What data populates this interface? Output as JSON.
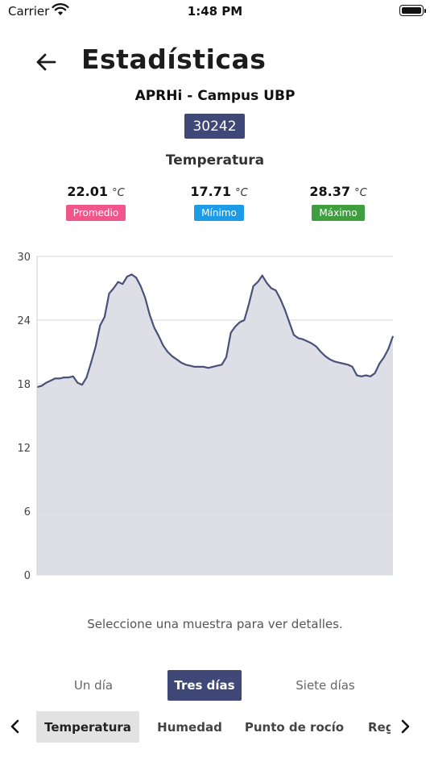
{
  "status_bar": {
    "carrier": "Carrier",
    "time": "1:48 PM"
  },
  "header": {
    "title": "Estadísticas"
  },
  "station": {
    "name": "APRHi - Campus UBP",
    "id": "30242"
  },
  "variable": {
    "title": "Temperatura"
  },
  "stats": [
    {
      "value": "22.01",
      "unit": "°C",
      "label": "Promedio",
      "color": "#f0568a"
    },
    {
      "value": "17.71",
      "unit": "°C",
      "label": "Mínimo",
      "color": "#1e9be6"
    },
    {
      "value": "28.37",
      "unit": "°C",
      "label": "Máximo",
      "color": "#3e9e40"
    }
  ],
  "chart_data": {
    "type": "area",
    "title": "",
    "xlabel": "",
    "ylabel": "",
    "ylim": [
      0,
      30
    ],
    "yticks": [
      "0",
      "6",
      "12",
      "18",
      "24",
      "30"
    ],
    "grid": true,
    "line_color": "#4a5178",
    "fill_color": "#dcdce6",
    "series": [
      {
        "values": [
          17.7,
          17.8,
          18.1,
          18.3,
          18.5,
          18.5,
          18.6,
          18.6,
          18.7,
          18.1,
          17.9,
          18.6,
          20.0,
          21.5,
          23.5,
          24.3,
          26.5,
          27.0,
          27.6,
          27.4,
          28.1,
          28.3,
          28.0,
          27.2,
          26.1,
          24.5,
          23.3,
          22.5,
          21.6,
          21.0,
          20.6,
          20.3,
          20.0,
          19.8,
          19.7,
          19.6,
          19.6,
          19.6,
          19.5,
          19.6,
          19.7,
          19.8,
          20.5,
          22.8,
          23.4,
          23.8,
          24.0,
          25.5,
          27.2,
          27.6,
          28.2,
          27.5,
          27.0,
          26.8,
          26.0,
          25.0,
          23.8,
          22.6,
          22.3,
          22.2,
          22.0,
          21.8,
          21.5,
          21.0,
          20.6,
          20.3,
          20.1,
          20.0,
          19.9,
          19.8,
          19.6,
          18.8,
          18.7,
          18.8,
          18.7,
          19.0,
          19.9,
          20.5,
          21.3,
          22.5
        ]
      }
    ]
  },
  "helper_text": "Seleccione una muestra para ver detalles.",
  "range_tabs": [
    {
      "label": "Un día",
      "active": false
    },
    {
      "label": "Tres días",
      "active": true
    },
    {
      "label": "Siete días",
      "active": false
    }
  ],
  "variable_tabs": [
    {
      "label": "Temperatura",
      "active": true
    },
    {
      "label": "Humedad",
      "active": false
    },
    {
      "label": "Punto de rocío",
      "active": false
    },
    {
      "label": "Reg",
      "active": false
    }
  ],
  "icons": {
    "back": "arrow-left-icon",
    "prev": "chevron-left-icon",
    "next": "chevron-right-icon",
    "wifi": "wifi-icon",
    "battery": "battery-icon"
  }
}
